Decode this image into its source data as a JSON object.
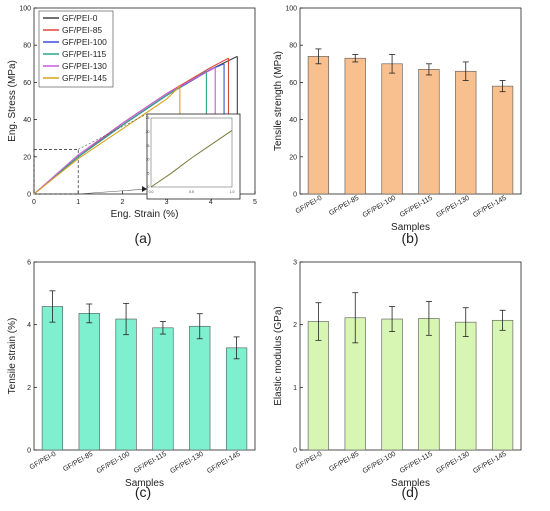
{
  "chart_data": [
    {
      "panel": "(a)",
      "type": "line",
      "xlabel": "Eng. Strain (%)",
      "ylabel": "Eng. Stress (MPa)",
      "xlim": [
        0,
        5
      ],
      "ylim": [
        0,
        100
      ],
      "xticks": [
        0,
        1,
        2,
        3,
        4,
        5
      ],
      "yticks": [
        0,
        20,
        40,
        60,
        80,
        100
      ],
      "legend_position": "top-left",
      "series": [
        {
          "name": "GF/PEI-0",
          "color": "#404040",
          "x": [
            0,
            1,
            2,
            3,
            4,
            4.6
          ],
          "y": [
            0,
            20,
            37,
            53,
            67,
            74
          ]
        },
        {
          "name": "GF/PEI-85",
          "color": "#e0453a",
          "x": [
            0,
            1,
            2,
            3,
            4,
            4.4
          ],
          "y": [
            0,
            20,
            38,
            54,
            68,
            73
          ]
        },
        {
          "name": "GF/PEI-100",
          "color": "#3a4fd8",
          "x": [
            0,
            1,
            2,
            3,
            4,
            4.3
          ],
          "y": [
            0,
            20,
            37,
            53,
            67,
            70
          ]
        },
        {
          "name": "GF/PEI-115",
          "color": "#2aa58a",
          "x": [
            0,
            1,
            2,
            3,
            3.9
          ],
          "y": [
            0,
            20,
            37,
            53,
            66
          ]
        },
        {
          "name": "GF/PEI-130",
          "color": "#c85ad8",
          "x": [
            0,
            1,
            2,
            3,
            4.1
          ],
          "y": [
            0,
            21,
            38,
            54,
            68
          ]
        },
        {
          "name": "GF/PEI-145",
          "color": "#d9a21a",
          "x": [
            0,
            1,
            2,
            3,
            3.3
          ],
          "y": [
            0,
            19,
            35,
            51,
            58
          ]
        }
      ],
      "inset": {
        "xlim": [
          0,
          1
        ],
        "ylim": [
          0,
          25
        ],
        "xticks": [
          "0.0",
          "0.5",
          "1.0"
        ],
        "yticks": [
          "0",
          "5",
          "10",
          "15",
          "20",
          "25"
        ],
        "x": [
          0,
          0.25,
          0.5,
          0.75,
          1.0
        ],
        "y": [
          0,
          5,
          10.5,
          15.5,
          20.5
        ]
      }
    },
    {
      "panel": "(b)",
      "type": "bar",
      "xlabel": "Samples",
      "ylabel": "Tensile strength (MPa)",
      "ylim": [
        0,
        100
      ],
      "yticks": [
        0,
        20,
        40,
        60,
        80,
        100
      ],
      "color": "#f9c08f",
      "categories": [
        "GF/PEI-0",
        "GF/PEI-85",
        "GF/PEI-100",
        "GF/PEI-115",
        "GF/PEI-130",
        "GF/PEI-145"
      ],
      "values": [
        74,
        73,
        70,
        67,
        66,
        58
      ],
      "errors": [
        4,
        2,
        5,
        3,
        5,
        3
      ]
    },
    {
      "panel": "(c)",
      "type": "bar",
      "xlabel": "Samples",
      "ylabel": "Tensile strain (%)",
      "ylim": [
        0,
        6
      ],
      "yticks": [
        0,
        2,
        4,
        6
      ],
      "color": "#7ef0cf",
      "categories": [
        "GF/PEI-0",
        "GF/PEI-85",
        "GF/PEI-100",
        "GF/PEI-115",
        "GF/PEI-130",
        "GF/PEI-145"
      ],
      "values": [
        4.58,
        4.36,
        4.18,
        3.9,
        3.95,
        3.26
      ],
      "errors": [
        0.5,
        0.3,
        0.5,
        0.2,
        0.4,
        0.35
      ]
    },
    {
      "panel": "(d)",
      "type": "bar",
      "xlabel": "Samples",
      "ylabel": "Elastic modulus (GPa)",
      "ylim": [
        0,
        3
      ],
      "yticks": [
        0,
        1,
        2,
        3
      ],
      "color": "#d7f6b4",
      "categories": [
        "GF/PEI-0",
        "GF/PEI-85",
        "GF/PEI-100",
        "GF/PEI-115",
        "GF/PEI-130",
        "GF/PEI-145"
      ],
      "values": [
        2.05,
        2.11,
        2.09,
        2.1,
        2.04,
        2.07
      ],
      "errors": [
        0.3,
        0.4,
        0.2,
        0.27,
        0.23,
        0.16
      ]
    }
  ]
}
